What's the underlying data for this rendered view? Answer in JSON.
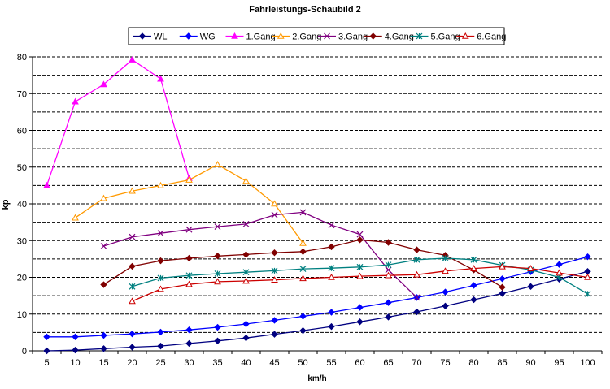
{
  "chart_data": {
    "type": "line",
    "title": "Fahrleistungs-Schaubild 2",
    "xlabel": "km/h",
    "ylabel": "kp",
    "x": [
      5,
      10,
      15,
      20,
      25,
      30,
      35,
      40,
      45,
      50,
      55,
      60,
      65,
      70,
      75,
      80,
      85,
      90,
      95,
      100
    ],
    "ylim": [
      0,
      80
    ],
    "yticks": [
      0,
      10,
      20,
      30,
      40,
      50,
      60,
      70,
      80
    ],
    "grid": "horizontal dashed every 5",
    "legend_position": "top",
    "series": [
      {
        "name": "WL",
        "color": "#000080",
        "marker": "diamond",
        "values": [
          0,
          0.2,
          0.6,
          1.0,
          1.3,
          2.0,
          2.7,
          3.5,
          4.5,
          5.5,
          6.6,
          7.9,
          9.2,
          10.6,
          12.2,
          13.9,
          15.6,
          17.5,
          19.5,
          21.6
        ]
      },
      {
        "name": "WG",
        "color": "#0000ff",
        "marker": "diamond",
        "values": [
          3.8,
          3.8,
          4.2,
          4.6,
          5.1,
          5.7,
          6.4,
          7.3,
          8.3,
          9.4,
          10.5,
          11.8,
          13.1,
          14.5,
          16.0,
          17.8,
          19.6,
          21.5,
          23.5,
          25.6
        ]
      },
      {
        "name": "1.Gang",
        "color": "#ff00ff",
        "marker": "triangle",
        "values": [
          45.0,
          67.8,
          72.5,
          79.2,
          74.0,
          47.0,
          null,
          null,
          null,
          null,
          null,
          null,
          null,
          null,
          null,
          null,
          null,
          null,
          null,
          null
        ]
      },
      {
        "name": "2.Gang",
        "color": "#ff9900",
        "marker": "triangle-open",
        "values": [
          null,
          36.2,
          41.5,
          43.5,
          45.0,
          46.5,
          50.7,
          46.2,
          40.0,
          29.3,
          null,
          null,
          null,
          null,
          null,
          null,
          null,
          null,
          null,
          null
        ]
      },
      {
        "name": "3.Gang",
        "color": "#800080",
        "marker": "x",
        "values": [
          null,
          null,
          28.5,
          31.0,
          32.0,
          33.0,
          33.8,
          34.5,
          37.0,
          37.7,
          34.2,
          31.7,
          22.0,
          14.5,
          null,
          null,
          null,
          null,
          null,
          null
        ]
      },
      {
        "name": "4.Gang",
        "color": "#800000",
        "marker": "diamond",
        "values": [
          null,
          null,
          18.0,
          23.0,
          24.5,
          25.2,
          25.8,
          26.2,
          26.7,
          27.0,
          28.3,
          30.2,
          29.5,
          27.5,
          26.0,
          22.0,
          17.3,
          null,
          null,
          null
        ]
      },
      {
        "name": "5.Gang",
        "color": "#008080",
        "marker": "asterisk",
        "values": [
          null,
          null,
          null,
          17.5,
          19.8,
          20.5,
          21.0,
          21.4,
          21.8,
          22.3,
          22.5,
          22.8,
          23.4,
          24.8,
          25.2,
          24.8,
          23.3,
          22.0,
          20.0,
          15.5
        ]
      },
      {
        "name": "6.Gang",
        "color": "#cc0000",
        "marker": "triangle-open",
        "values": [
          null,
          null,
          null,
          13.5,
          16.8,
          18.1,
          18.8,
          19.0,
          19.3,
          19.7,
          20.0,
          20.3,
          20.5,
          20.7,
          21.7,
          22.4,
          22.9,
          22.4,
          21.2,
          20.0
        ]
      }
    ]
  }
}
